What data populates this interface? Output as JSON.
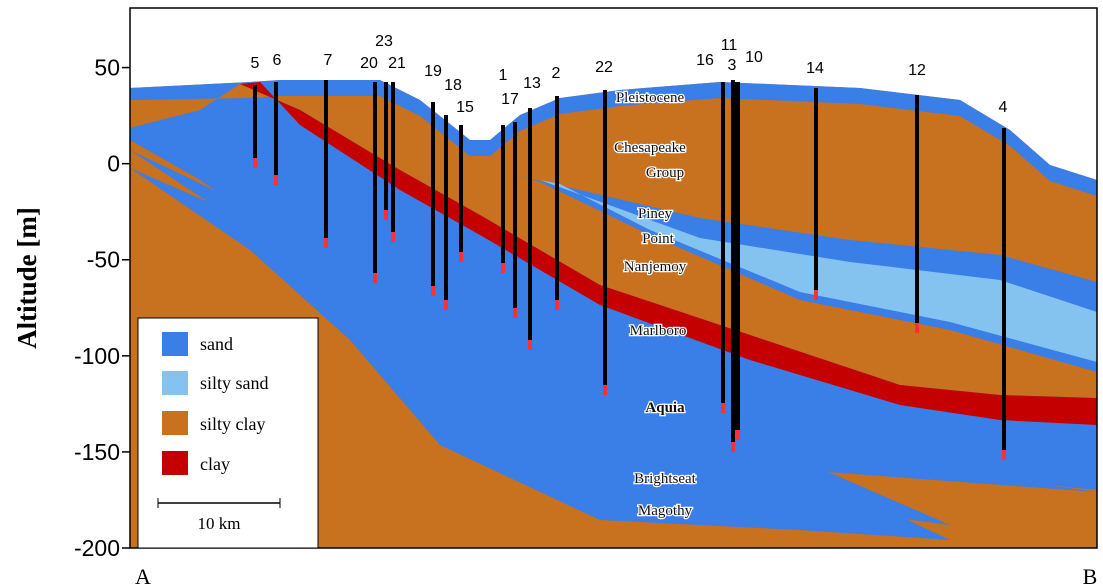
{
  "axis": {
    "label": "Altitude [m]",
    "ylim": [
      -200,
      81
    ],
    "yticks": [
      50,
      0,
      -50,
      -100,
      -150,
      -200
    ]
  },
  "wells": [
    "5",
    "6",
    "7",
    "20",
    "23",
    "21",
    "19",
    "18",
    "15",
    "1",
    "17",
    "13",
    "2",
    "22",
    "16",
    "11",
    "3",
    "10",
    "14",
    "12",
    "4"
  ],
  "layers": [
    "Pleistocene",
    "Chesapeake",
    "Group",
    "Piney",
    "Point",
    "Nanjemoy",
    "Marlboro",
    "Aquia",
    "Brightseat",
    "Magothy"
  ],
  "legend": [
    "sand",
    "silty sand",
    "silty clay",
    "clay"
  ],
  "scale_bar": "10 km",
  "endpoints": [
    "A",
    "B"
  ]
}
